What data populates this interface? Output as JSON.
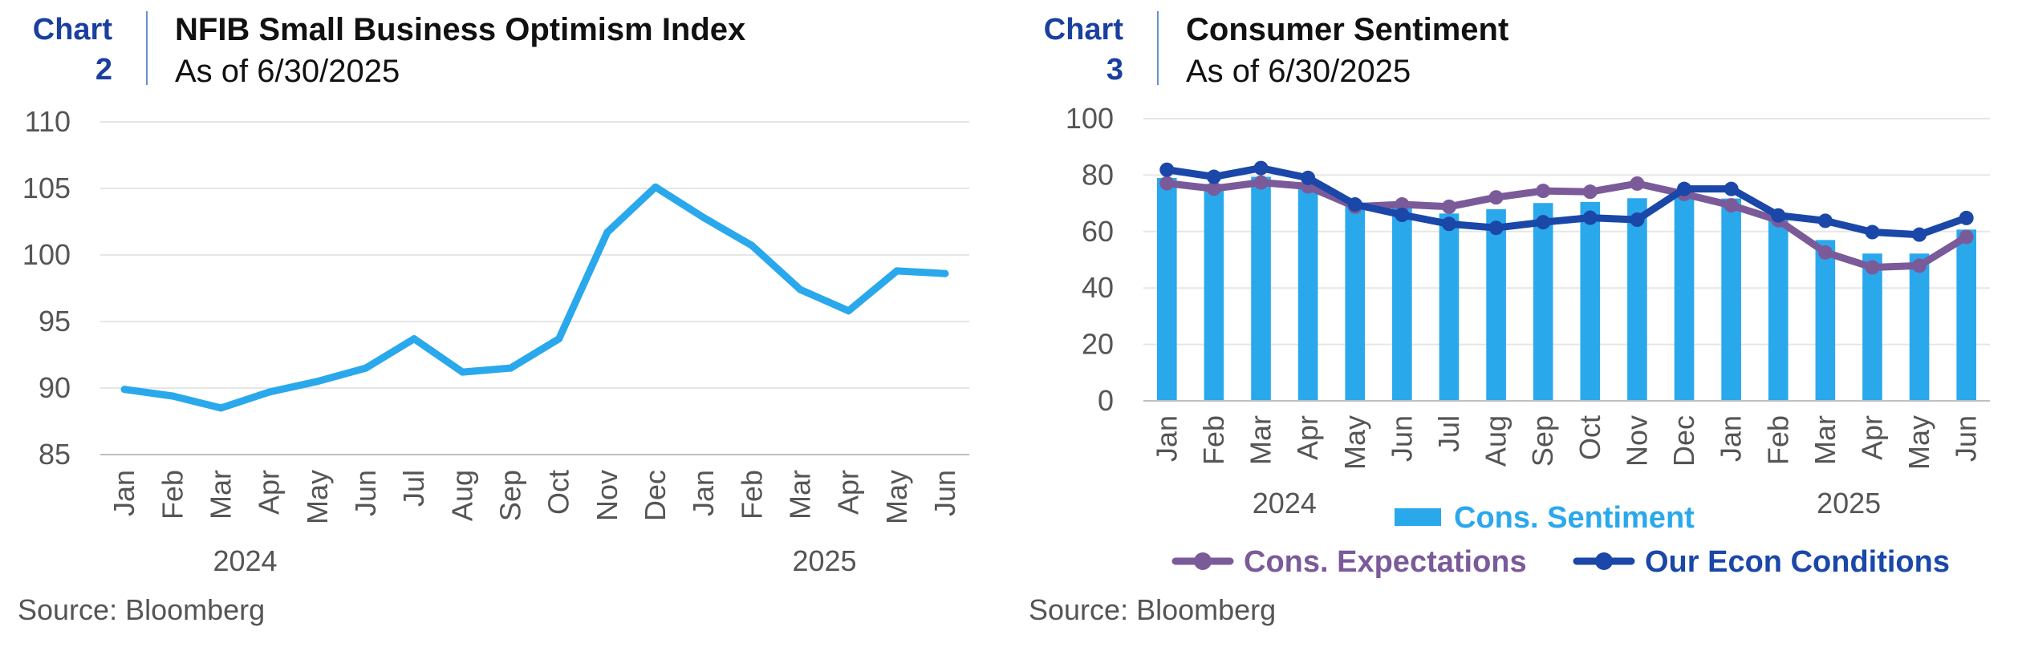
{
  "charts": [
    {
      "number_label": "Chart",
      "number": "2",
      "title": "NFIB Small Business Optimism Index",
      "subtitle": "As of 6/30/2025",
      "source": "Source: Bloomberg"
    },
    {
      "number_label": "Chart",
      "number": "3",
      "title": "Consumer Sentiment",
      "subtitle": "As of 6/30/2025",
      "source": "Source: Bloomberg"
    }
  ],
  "chart_data": [
    {
      "type": "line",
      "title": "NFIB Small Business Optimism Index",
      "subtitle": "As of 6/30/2025",
      "categories": [
        "Jan",
        "Feb",
        "Mar",
        "Apr",
        "May",
        "Jun",
        "Jul",
        "Aug",
        "Sep",
        "Oct",
        "Nov",
        "Dec",
        "Jan",
        "Feb",
        "Mar",
        "Apr",
        "May",
        "Jun"
      ],
      "year_labels": [
        {
          "label": "2024",
          "index": 2.5
        },
        {
          "label": "2025",
          "index": 14.5
        }
      ],
      "series": [
        {
          "values": [
            89.9,
            89.4,
            88.5,
            89.7,
            90.5,
            91.5,
            93.7,
            91.2,
            91.5,
            93.7,
            101.7,
            105.1,
            102.8,
            100.7,
            97.4,
            95.8,
            98.8,
            98.6
          ],
          "color": "#2aa8ec"
        }
      ],
      "yticks": [
        85,
        90,
        95,
        100,
        105,
        110
      ],
      "ylim": [
        85,
        110
      ],
      "grid": true,
      "legend": "none"
    },
    {
      "type": "bar",
      "title": "Consumer Sentiment",
      "subtitle": "As of 6/30/2025",
      "categories": [
        "Jan",
        "Feb",
        "Mar",
        "Apr",
        "May",
        "Jun",
        "Jul",
        "Aug",
        "Sep",
        "Oct",
        "Nov",
        "Dec",
        "Jan",
        "Feb",
        "Mar",
        "Apr",
        "May",
        "Jun"
      ],
      "year_labels": [
        {
          "label": "2024",
          "index": 2.5
        },
        {
          "label": "2025",
          "index": 14.5
        }
      ],
      "series": [
        {
          "name": "Cons. Sentiment",
          "kind": "bar",
          "color": "#2aa8ec",
          "values": [
            79.0,
            76.9,
            79.4,
            77.2,
            69.1,
            68.2,
            66.4,
            67.9,
            70.1,
            70.5,
            71.8,
            74.0,
            71.7,
            64.7,
            57.0,
            52.2,
            52.2,
            60.7
          ]
        },
        {
          "name": "Cons. Expectations",
          "kind": "line",
          "color": "#7b5a9a",
          "values": [
            77.1,
            75.2,
            77.4,
            76.0,
            68.8,
            69.6,
            68.8,
            72.1,
            74.4,
            74.1,
            77.0,
            73.3,
            69.3,
            64.0,
            52.6,
            47.3,
            47.9,
            58.1
          ]
        },
        {
          "name": "Our Econ Conditions",
          "kind": "line",
          "color": "#1a47a8",
          "values": [
            81.9,
            79.4,
            82.5,
            79.0,
            69.6,
            65.9,
            62.7,
            61.3,
            63.3,
            64.9,
            64.2,
            75.1,
            75.1,
            65.7,
            63.8,
            59.8,
            58.9,
            64.8
          ]
        }
      ],
      "yticks": [
        0,
        20,
        40,
        60,
        80,
        100
      ],
      "ylim": [
        0,
        100
      ],
      "grid": true,
      "legend": "bottom"
    }
  ]
}
